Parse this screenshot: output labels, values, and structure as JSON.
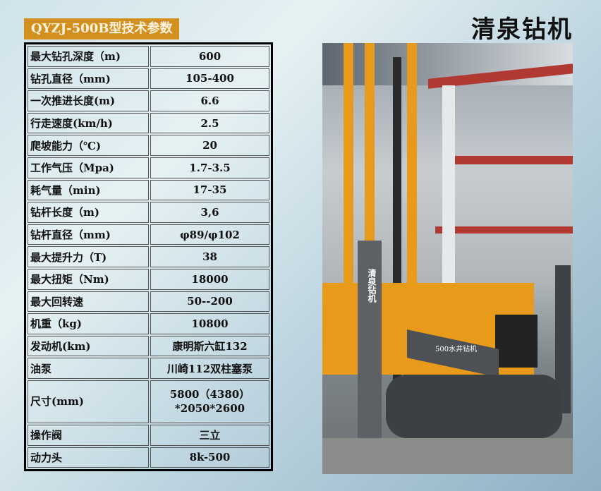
{
  "header": {
    "model_title": "QYZJ-500B型技术参数",
    "brand": "清泉钻机"
  },
  "specs": [
    {
      "label": "最大钻孔深度（m)",
      "value": "600"
    },
    {
      "label": "钻孔直径（mm)",
      "value": "105-400"
    },
    {
      "label": "一次推进长度(m)",
      "value": "6.6"
    },
    {
      "label": "行走速度(km/h)",
      "value": "2.5"
    },
    {
      "label": "爬坡能力（℃)",
      "value": "20"
    },
    {
      "label": "工作气压（Mpa)",
      "value": "1.7-3.5"
    },
    {
      "label": "耗气量（min)",
      "value": "17-35"
    },
    {
      "label": "钻杆长度（m)",
      "value": "3,6"
    },
    {
      "label": "钻杆直径（mm)",
      "value": "φ89/φ102"
    },
    {
      "label": "最大提升力（T)",
      "value": "38"
    },
    {
      "label": "最大扭矩（Nm)",
      "value": "18000"
    },
    {
      "label": "最大回转速",
      "value": "50--200"
    },
    {
      "label": "机重（kg)",
      "value": "10800"
    },
    {
      "label": "发动机(km)",
      "value": "康明斯六缸132"
    },
    {
      "label": "油泵",
      "value": "川崎112双柱塞泵"
    },
    {
      "label": "尺寸(mm)",
      "value": "5800（4380）",
      "value2": "*2050*2600"
    },
    {
      "label": "操作阀",
      "value": "三立"
    },
    {
      "label": "动力头",
      "value": "8k-500"
    }
  ],
  "photo": {
    "mast_label": "清泉钻机",
    "machine_label": "500水井钻机"
  },
  "colors": {
    "badge": "#d4901f",
    "rig": "#e89a1a"
  }
}
